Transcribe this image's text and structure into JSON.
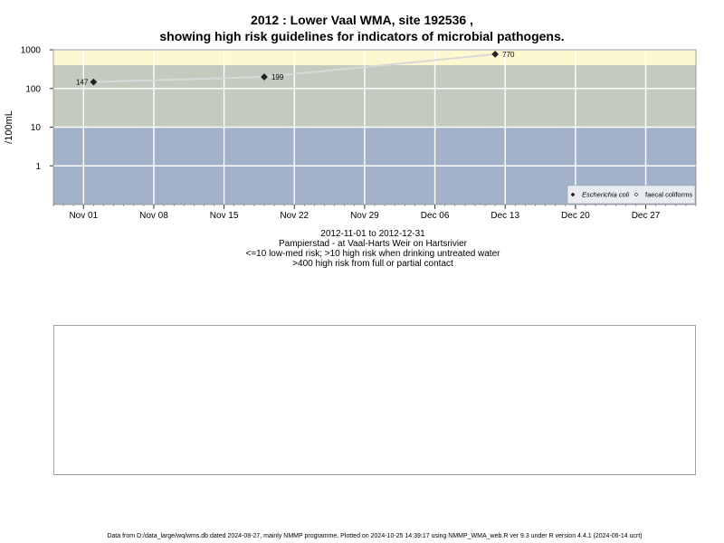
{
  "title": {
    "line1": "2012 : Lower Vaal WMA, site 192536 ,",
    "line2": "showing high risk guidelines for indicators of microbial pathogens."
  },
  "subtitle": {
    "date_range": "2012-11-01 to 2012-12-31",
    "site": "Pampierstad - at Vaal-Harts Weir on Hartsrivier",
    "guideline_1": "<=10 low-med risk; >10 high risk when drinking untreated water",
    "guideline_2": ">400 high risk from full or partial contact"
  },
  "footer": "Data from D:/data_large/wq/wms.db dated 2024-08-27, mainly NMMP programme. Plotted on 2024-10-25 14:39:17 using NMMP_WMA_web.R ver 9.3 under R version 4.4.1 (2024-06-14 ucrt)",
  "colors": {
    "band_high_contact": "#fdf8cf",
    "band_high_drinking": "#c3cbbe",
    "band_low_med": "#a3b2c9",
    "gridline": "#ffffff",
    "series_line": "#d9d9d9",
    "point": "#222222"
  },
  "chart_data": {
    "type": "line",
    "scale_y": "log10",
    "ylabel": "/100mL",
    "xlabel": "",
    "x_range": [
      "2012-10-29",
      "2013-01-01"
    ],
    "y_range": [
      0.1,
      1000
    ],
    "grid": true,
    "y_ticks": [
      {
        "value": 1,
        "label": "1"
      },
      {
        "value": 10,
        "label": "10"
      },
      {
        "value": 100,
        "label": "100"
      },
      {
        "value": 1000,
        "label": "1000"
      }
    ],
    "x_ticks": [
      {
        "date": "2012-11-01",
        "label": "Nov 01"
      },
      {
        "date": "2012-11-08",
        "label": "Nov 08"
      },
      {
        "date": "2012-11-15",
        "label": "Nov 15"
      },
      {
        "date": "2012-11-22",
        "label": "Nov 22"
      },
      {
        "date": "2012-11-29",
        "label": "Nov 29"
      },
      {
        "date": "2012-12-06",
        "label": "Dec 06"
      },
      {
        "date": "2012-12-13",
        "label": "Dec 13"
      },
      {
        "date": "2012-12-20",
        "label": "Dec 20"
      },
      {
        "date": "2012-12-27",
        "label": "Dec 27"
      }
    ],
    "risk_bands": [
      {
        "from": 400,
        "to": 1000,
        "color": "#fdf8cf"
      },
      {
        "from": 10,
        "to": 400,
        "color": "#c3cbbe"
      },
      {
        "from": 0.1,
        "to": 10,
        "color": "#a3b2c9"
      }
    ],
    "series": [
      {
        "name": "Escherichia coli",
        "marker": "filled-diamond",
        "points": [
          {
            "date": "2012-11-02",
            "value": 147,
            "label": "147"
          },
          {
            "date": "2012-11-19",
            "value": 199,
            "label": "199"
          },
          {
            "date": "2012-12-12",
            "value": 770,
            "label": "770"
          }
        ]
      },
      {
        "name": "faecal coliforms",
        "marker": "open-diamond",
        "points": []
      }
    ],
    "legend": {
      "position": "bottom-right",
      "entries": [
        {
          "label": "Escherichia coli",
          "marker": "filled-diamond",
          "italic": true
        },
        {
          "label": "faecal coliforms",
          "marker": "open-diamond",
          "italic": false
        }
      ]
    }
  }
}
